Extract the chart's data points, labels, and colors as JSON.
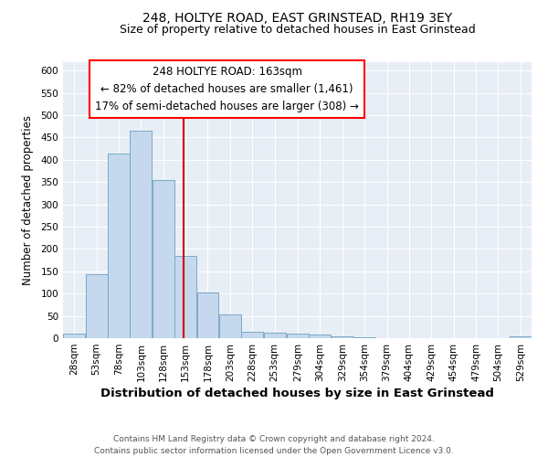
{
  "title": "248, HOLTYE ROAD, EAST GRINSTEAD, RH19 3EY",
  "subtitle": "Size of property relative to detached houses in East Grinstead",
  "xlabel": "Distribution of detached houses by size in East Grinstead",
  "ylabel": "Number of detached properties",
  "footnote1": "Contains HM Land Registry data © Crown copyright and database right 2024.",
  "footnote2": "Contains public sector information licensed under the Open Government Licence v3.0.",
  "annotation_line1": "248 HOLTYE ROAD: 163sqm",
  "annotation_line2": "← 82% of detached houses are smaller (1,461)",
  "annotation_line3": "17% of semi-detached houses are larger (308) →",
  "bar_color": "#c5d8ed",
  "bar_edge_color": "#7aaac8",
  "vertical_line_color": "#cc0000",
  "vertical_line_x": 163,
  "bin_width": 25,
  "bins": [
    28,
    53,
    78,
    103,
    128,
    153,
    178,
    203,
    228,
    253,
    279,
    304,
    329,
    354,
    379,
    404,
    429,
    454,
    479,
    504,
    529
  ],
  "bar_values": [
    10,
    143,
    415,
    465,
    355,
    185,
    103,
    53,
    15,
    12,
    10,
    9,
    5,
    3,
    1,
    1,
    0,
    1,
    0,
    0,
    4
  ],
  "xlim_left": 28,
  "xlim_right": 554,
  "ylim_top": 620,
  "yticks": [
    0,
    50,
    100,
    150,
    200,
    250,
    300,
    350,
    400,
    450,
    500,
    550,
    600
  ],
  "fig_bg_color": "#ffffff",
  "plot_bg_color": "#e8eef5",
  "grid_color": "#ffffff",
  "title_fontsize": 10,
  "subtitle_fontsize": 9,
  "xlabel_fontsize": 9.5,
  "ylabel_fontsize": 8.5,
  "tick_fontsize": 7.5,
  "annot_fontsize": 8.5,
  "footnote_fontsize": 6.5
}
